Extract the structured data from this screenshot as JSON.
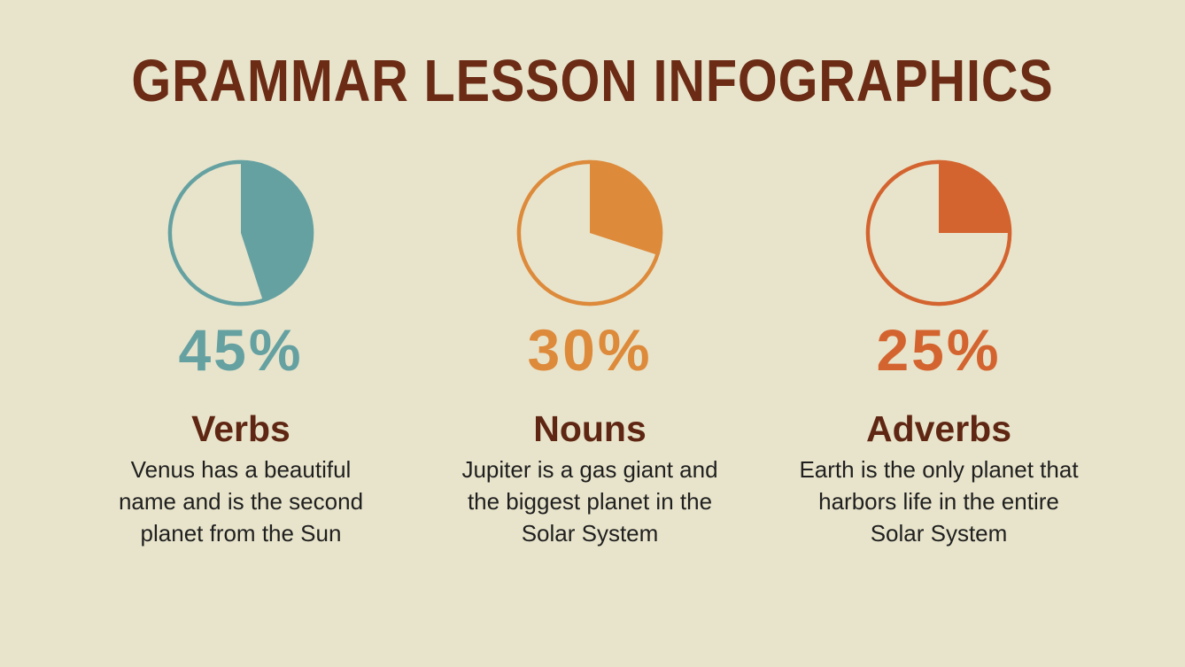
{
  "page": {
    "title": "GRAMMAR LESSON INFOGRAPHICS"
  },
  "colors": {
    "background": "#E8E4CB",
    "title": "#6B2B15",
    "heading": "#5F2713",
    "body_text": "#1F1F1F"
  },
  "chart_data": [
    {
      "type": "pie",
      "title": "Verbs",
      "value": 45,
      "value_label": "45%",
      "values": [
        45,
        55
      ],
      "labels": [
        "filled",
        "empty"
      ],
      "color": "#66A1A2",
      "description": "Venus has a beautiful\nname and is the second\nplanet from the Sun"
    },
    {
      "type": "pie",
      "title": "Nouns",
      "value": 30,
      "value_label": "30%",
      "values": [
        30,
        70
      ],
      "labels": [
        "filled",
        "empty"
      ],
      "color": "#DD8A3B",
      "description": "Jupiter is a gas giant and\nthe biggest planet in the\nSolar System"
    },
    {
      "type": "pie",
      "title": "Adverbs",
      "value": 25,
      "value_label": "25%",
      "values": [
        25,
        75
      ],
      "labels": [
        "filled",
        "empty"
      ],
      "color": "#D4642F",
      "description": "Earth is the only planet that\nharbors life in the entire\nSolar System"
    }
  ]
}
